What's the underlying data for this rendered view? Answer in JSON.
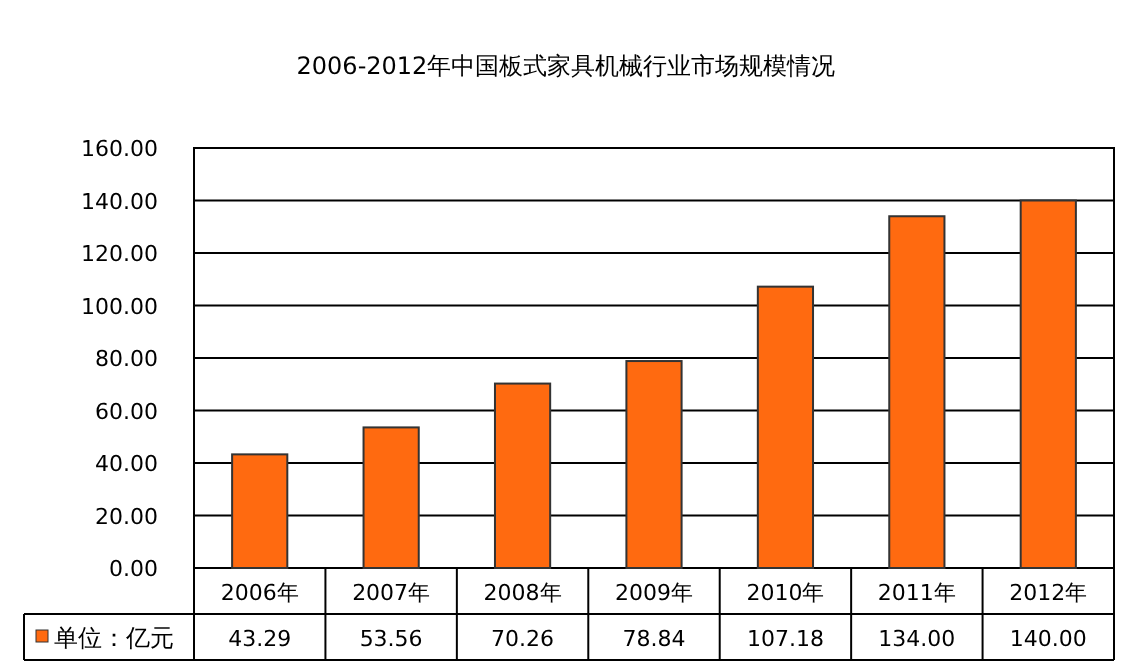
{
  "chart_data": {
    "type": "bar",
    "title": "2006-2012年中国板式家具机械行业市场规模情况",
    "categories": [
      "2006年",
      "2007年",
      "2008年",
      "2009年",
      "2010年",
      "2011年",
      "2012年"
    ],
    "series": [
      {
        "name": "单位：亿元",
        "color": "#ff6a10",
        "values": [
          43.29,
          53.56,
          70.26,
          78.84,
          107.18,
          134,
          140
        ],
        "value_labels": [
          "43.29",
          "53.56",
          "70.26",
          "78.84",
          "107.18",
          "134.00",
          "140.00"
        ]
      }
    ],
    "ylim": [
      0,
      160
    ],
    "yticks": [
      {
        "value": 0,
        "label": "0.00"
      },
      {
        "value": 20,
        "label": "20.00"
      },
      {
        "value": 40,
        "label": "40.00"
      },
      {
        "value": 60,
        "label": "60.00"
      },
      {
        "value": 80,
        "label": "80.00"
      },
      {
        "value": 100,
        "label": "100.00"
      },
      {
        "value": 120,
        "label": "120.00"
      },
      {
        "value": 140,
        "label": "140.00"
      },
      {
        "value": 160,
        "label": "160.00"
      }
    ],
    "grid": "y",
    "legend": "bottom"
  }
}
